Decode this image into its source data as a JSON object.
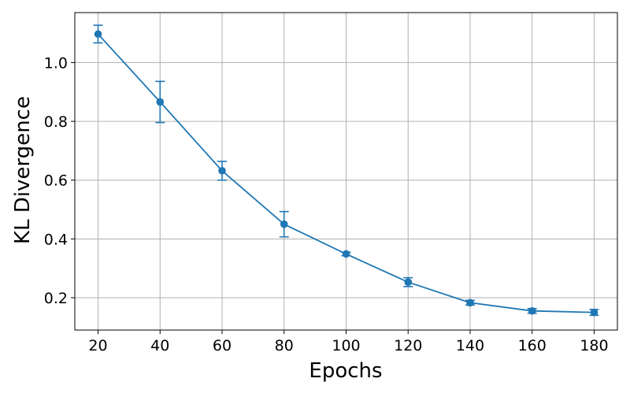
{
  "chart_data": {
    "type": "line",
    "title": "",
    "xlabel": "Epochs",
    "ylabel": "KL Divergence",
    "x": [
      20,
      40,
      60,
      80,
      100,
      120,
      140,
      160,
      180
    ],
    "series": [
      {
        "values": [
          1.097,
          0.866,
          0.632,
          0.45,
          0.349,
          0.253,
          0.183,
          0.155,
          0.15
        ],
        "errors": [
          0.03,
          0.07,
          0.032,
          0.043,
          0.006,
          0.015,
          0.008,
          0.008,
          0.01
        ],
        "color": "#1f77b4",
        "marker": "circle"
      }
    ],
    "xlim": [
      12.5,
      187.5
    ],
    "ylim": [
      0.09,
      1.17
    ],
    "xticks": [
      20,
      40,
      60,
      80,
      100,
      120,
      140,
      160,
      180
    ],
    "xtick_labels": [
      "20",
      "40",
      "60",
      "80",
      "100",
      "120",
      "140",
      "160",
      "180"
    ],
    "yticks": [
      0.2,
      0.4,
      0.6,
      0.8,
      1.0
    ],
    "ytick_labels": [
      "0.2",
      "0.4",
      "0.6",
      "0.8",
      "1.0"
    ],
    "grid": true,
    "grid_color": "#b0b0b0",
    "legend": false
  }
}
